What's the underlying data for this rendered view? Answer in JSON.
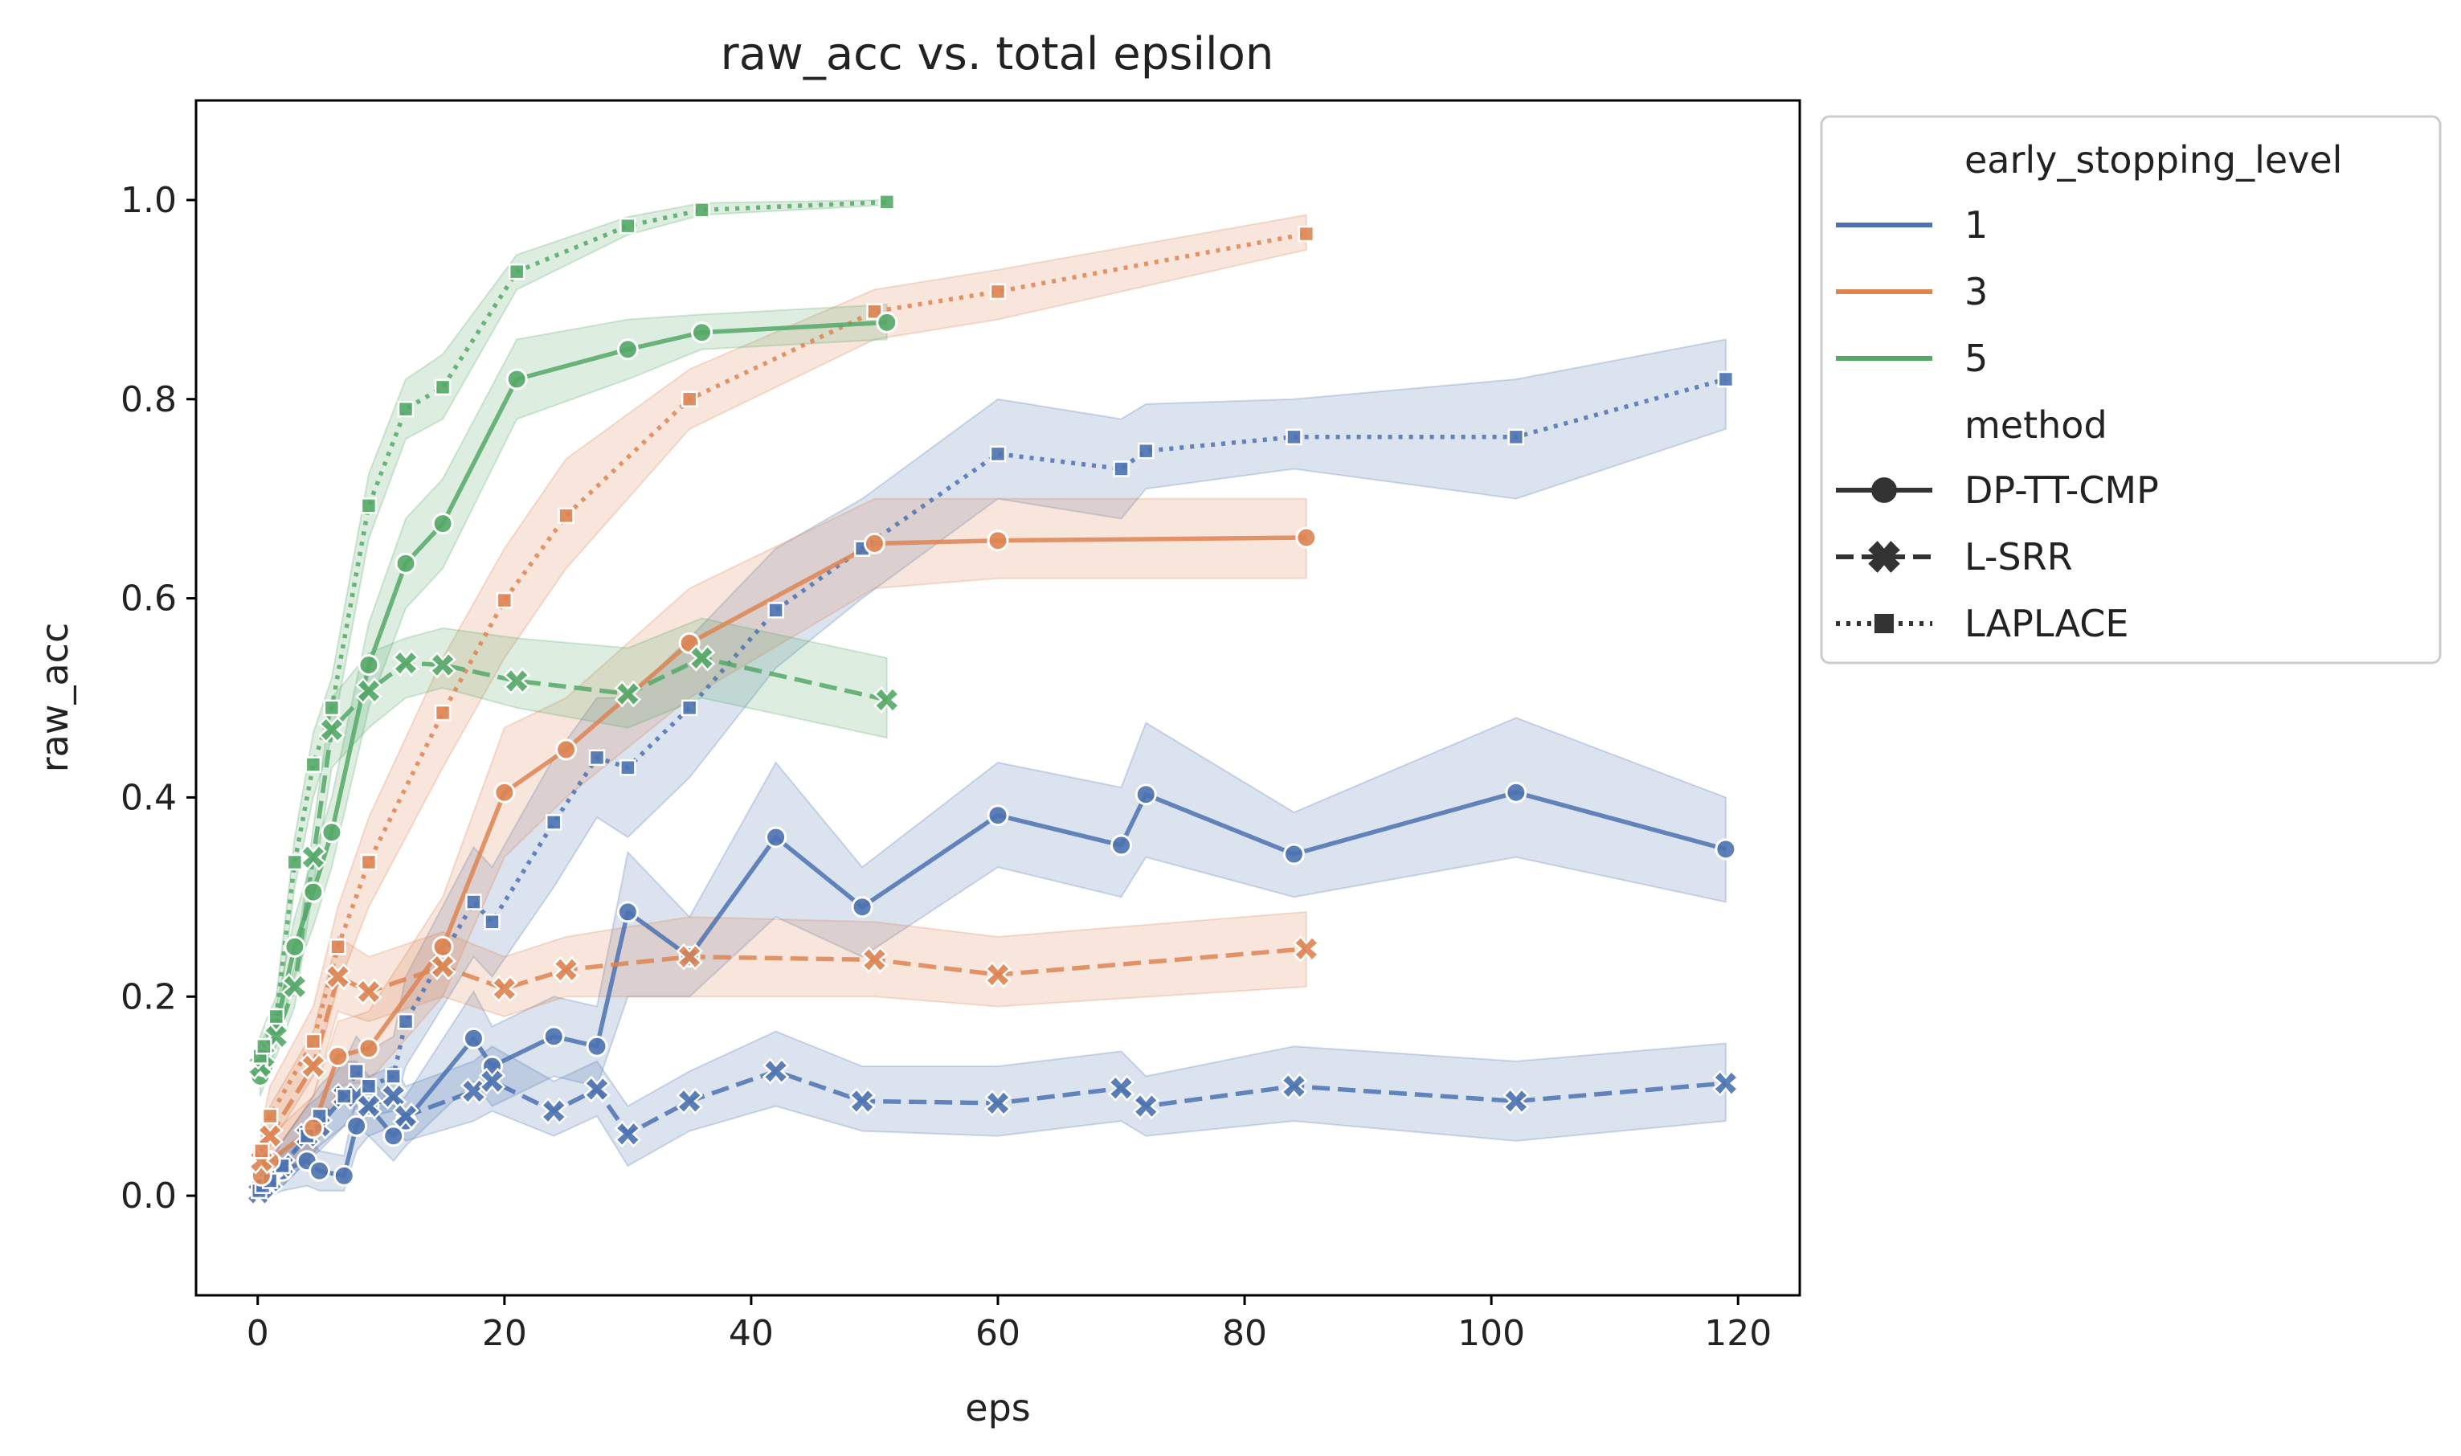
{
  "chart_data": {
    "type": "line",
    "title": "raw_acc vs. total epsilon",
    "xlabel": "eps",
    "ylabel": "raw_acc",
    "xlim": [
      -5,
      125
    ],
    "ylim": [
      -0.1,
      1.1
    ],
    "xticks": [
      0,
      20,
      40,
      60,
      80,
      100,
      120
    ],
    "yticks": [
      0.0,
      0.2,
      0.4,
      0.6,
      0.8,
      1.0
    ],
    "xtick_labels": [
      "0",
      "20",
      "40",
      "60",
      "80",
      "100",
      "120"
    ],
    "ytick_labels": [
      "0.0",
      "0.2",
      "0.4",
      "0.6",
      "0.8",
      "1.0"
    ],
    "grid": false,
    "legend": {
      "placement": "outside-right",
      "hue_title": "early_stopping_level",
      "style_title": "method",
      "levels": [
        {
          "label": "1",
          "color": "#4c72b0"
        },
        {
          "label": "3",
          "color": "#dd8452"
        },
        {
          "label": "5",
          "color": "#55a868"
        }
      ],
      "methods": [
        {
          "label": "DP-TT-CMP",
          "dash": "solid",
          "marker": "circle"
        },
        {
          "label": "L-SRR",
          "dash": "dashed",
          "marker": "x"
        },
        {
          "label": "LAPLACE",
          "dash": "dotted",
          "marker": "square"
        }
      ]
    },
    "series": [
      {
        "level": "1",
        "method": "DP-TT-CMP",
        "x": [
          0.1,
          0.4,
          1,
          2,
          4,
          5,
          7,
          8,
          9,
          11,
          12,
          17.5,
          19,
          24,
          27.5,
          30,
          35,
          42,
          49,
          60,
          70,
          72,
          84,
          102,
          119
        ],
        "y": [
          0.005,
          0.01,
          0.015,
          0.025,
          0.035,
          0.025,
          0.02,
          0.07,
          0.09,
          0.06,
          0.075,
          0.158,
          0.13,
          0.16,
          0.15,
          0.285,
          0.24,
          0.36,
          0.29,
          0.382,
          0.352,
          0.403,
          0.343,
          0.405,
          0.348
        ],
        "ci_low": [
          0.0,
          0.0,
          0.0,
          0.005,
          0.01,
          0.005,
          0.005,
          0.045,
          0.06,
          0.035,
          0.05,
          0.115,
          0.09,
          0.12,
          0.11,
          0.2,
          0.2,
          0.28,
          0.24,
          0.33,
          0.3,
          0.34,
          0.3,
          0.34,
          0.295
        ],
        "ci_high": [
          0.01,
          0.02,
          0.03,
          0.045,
          0.06,
          0.045,
          0.04,
          0.1,
          0.12,
          0.09,
          0.1,
          0.205,
          0.17,
          0.2,
          0.19,
          0.345,
          0.28,
          0.435,
          0.33,
          0.435,
          0.41,
          0.475,
          0.385,
          0.48,
          0.4
        ]
      },
      {
        "level": "1",
        "method": "L-SRR",
        "x": [
          0.1,
          0.4,
          1,
          2,
          4,
          5,
          7,
          8,
          9,
          11,
          12,
          17.5,
          19,
          24,
          27.5,
          30,
          35,
          42,
          49,
          60,
          70,
          72,
          84,
          102,
          119
        ],
        "y": [
          0.003,
          0.008,
          0.015,
          0.03,
          0.06,
          0.07,
          0.1,
          0.1,
          0.09,
          0.1,
          0.08,
          0.105,
          0.115,
          0.085,
          0.107,
          0.062,
          0.095,
          0.125,
          0.095,
          0.093,
          0.108,
          0.09,
          0.11,
          0.095,
          0.113
        ],
        "ci_low": [
          0.0,
          0.0,
          0.0,
          0.01,
          0.035,
          0.045,
          0.07,
          0.07,
          0.06,
          0.07,
          0.055,
          0.075,
          0.085,
          0.06,
          0.08,
          0.03,
          0.065,
          0.09,
          0.065,
          0.06,
          0.075,
          0.06,
          0.075,
          0.055,
          0.075
        ],
        "ci_high": [
          0.008,
          0.02,
          0.035,
          0.055,
          0.09,
          0.1,
          0.135,
          0.135,
          0.12,
          0.13,
          0.11,
          0.135,
          0.15,
          0.115,
          0.135,
          0.09,
          0.125,
          0.165,
          0.13,
          0.13,
          0.145,
          0.12,
          0.15,
          0.135,
          0.153
        ]
      },
      {
        "level": "1",
        "method": "LAPLACE",
        "x": [
          0.1,
          0.4,
          1,
          2,
          4,
          5,
          7,
          8,
          9,
          11,
          12,
          17.5,
          19,
          24,
          27.5,
          30,
          35,
          42,
          49,
          60,
          70,
          72,
          84,
          102,
          119
        ],
        "y": [
          0.005,
          0.01,
          0.015,
          0.03,
          0.06,
          0.08,
          0.1,
          0.125,
          0.11,
          0.12,
          0.175,
          0.295,
          0.275,
          0.375,
          0.44,
          0.43,
          0.49,
          0.588,
          0.65,
          0.745,
          0.73,
          0.748,
          0.762,
          0.762,
          0.82
        ],
        "ci_low": [
          0.0,
          0.0,
          0.0,
          0.01,
          0.035,
          0.05,
          0.07,
          0.09,
          0.08,
          0.085,
          0.13,
          0.24,
          0.22,
          0.31,
          0.38,
          0.36,
          0.42,
          0.53,
          0.6,
          0.7,
          0.68,
          0.71,
          0.73,
          0.7,
          0.77
        ],
        "ci_high": [
          0.01,
          0.02,
          0.035,
          0.055,
          0.09,
          0.11,
          0.135,
          0.16,
          0.145,
          0.16,
          0.22,
          0.35,
          0.33,
          0.44,
          0.5,
          0.5,
          0.56,
          0.65,
          0.7,
          0.8,
          0.78,
          0.795,
          0.8,
          0.82,
          0.86
        ]
      },
      {
        "level": "3",
        "method": "DP-TT-CMP",
        "x": [
          0.3,
          1,
          4.5,
          6.5,
          9,
          15,
          20,
          25,
          35,
          50,
          60,
          85
        ],
        "y": [
          0.02,
          0.035,
          0.068,
          0.14,
          0.148,
          0.25,
          0.405,
          0.448,
          0.555,
          0.655,
          0.658,
          0.661
        ],
        "ci_low": [
          0.005,
          0.015,
          0.04,
          0.11,
          0.115,
          0.2,
          0.34,
          0.4,
          0.5,
          0.61,
          0.62,
          0.62
        ],
        "ci_high": [
          0.04,
          0.06,
          0.1,
          0.175,
          0.185,
          0.3,
          0.47,
          0.5,
          0.61,
          0.7,
          0.7,
          0.7
        ]
      },
      {
        "level": "3",
        "method": "L-SRR",
        "x": [
          0.3,
          1,
          4.5,
          6.5,
          9,
          15,
          20,
          25,
          35,
          50,
          60,
          85
        ],
        "y": [
          0.035,
          0.06,
          0.13,
          0.22,
          0.205,
          0.23,
          0.208,
          0.227,
          0.24,
          0.237,
          0.222,
          0.248
        ],
        "ci_low": [
          0.015,
          0.035,
          0.1,
          0.185,
          0.175,
          0.2,
          0.18,
          0.2,
          0.2,
          0.2,
          0.19,
          0.21
        ],
        "ci_high": [
          0.06,
          0.09,
          0.165,
          0.26,
          0.24,
          0.265,
          0.24,
          0.26,
          0.28,
          0.275,
          0.26,
          0.285
        ]
      },
      {
        "level": "3",
        "method": "LAPLACE",
        "x": [
          0.3,
          1,
          4.5,
          6.5,
          9,
          15,
          20,
          25,
          35,
          50,
          60,
          85
        ],
        "y": [
          0.045,
          0.08,
          0.155,
          0.25,
          0.335,
          0.485,
          0.598,
          0.683,
          0.8,
          0.888,
          0.908,
          0.966
        ],
        "ci_low": [
          0.02,
          0.05,
          0.12,
          0.21,
          0.29,
          0.43,
          0.54,
          0.63,
          0.77,
          0.86,
          0.88,
          0.95
        ],
        "ci_high": [
          0.07,
          0.11,
          0.19,
          0.29,
          0.38,
          0.54,
          0.65,
          0.74,
          0.83,
          0.91,
          0.93,
          0.985
        ]
      },
      {
        "level": "5",
        "method": "DP-TT-CMP",
        "x": [
          0.2,
          0.5,
          1.5,
          3,
          4.5,
          6,
          9,
          12,
          15,
          21,
          30,
          36,
          51
        ],
        "y": [
          0.12,
          0.13,
          0.17,
          0.25,
          0.305,
          0.365,
          0.533,
          0.635,
          0.675,
          0.82,
          0.85,
          0.867,
          0.877
        ],
        "ci_low": [
          0.1,
          0.11,
          0.15,
          0.22,
          0.27,
          0.33,
          0.49,
          0.59,
          0.63,
          0.78,
          0.82,
          0.85,
          0.86
        ],
        "ci_high": [
          0.14,
          0.15,
          0.19,
          0.28,
          0.34,
          0.4,
          0.575,
          0.68,
          0.72,
          0.86,
          0.88,
          0.885,
          0.895
        ]
      },
      {
        "level": "5",
        "method": "L-SRR",
        "x": [
          0.2,
          0.5,
          1.5,
          3,
          4.5,
          6,
          9,
          12,
          15,
          21,
          30,
          36,
          51
        ],
        "y": [
          0.13,
          0.14,
          0.16,
          0.21,
          0.34,
          0.468,
          0.507,
          0.535,
          0.533,
          0.517,
          0.504,
          0.54,
          0.498
        ],
        "ci_low": [
          0.11,
          0.12,
          0.14,
          0.19,
          0.31,
          0.43,
          0.47,
          0.5,
          0.51,
          0.49,
          0.47,
          0.5,
          0.46
        ],
        "ci_high": [
          0.15,
          0.16,
          0.18,
          0.23,
          0.37,
          0.5,
          0.545,
          0.56,
          0.57,
          0.56,
          0.55,
          0.58,
          0.54
        ]
      },
      {
        "level": "5",
        "method": "LAPLACE",
        "x": [
          0.2,
          0.5,
          1.5,
          3,
          4.5,
          6,
          9,
          12,
          15,
          21,
          30,
          36,
          51
        ],
        "y": [
          0.14,
          0.15,
          0.18,
          0.335,
          0.433,
          0.49,
          0.693,
          0.79,
          0.812,
          0.928,
          0.974,
          0.99,
          0.998
        ],
        "ci_low": [
          0.12,
          0.13,
          0.16,
          0.31,
          0.4,
          0.46,
          0.66,
          0.76,
          0.78,
          0.91,
          0.965,
          0.985,
          0.995
        ],
        "ci_high": [
          0.16,
          0.17,
          0.2,
          0.36,
          0.465,
          0.52,
          0.725,
          0.82,
          0.845,
          0.945,
          0.983,
          0.997,
          1.0
        ]
      }
    ]
  }
}
